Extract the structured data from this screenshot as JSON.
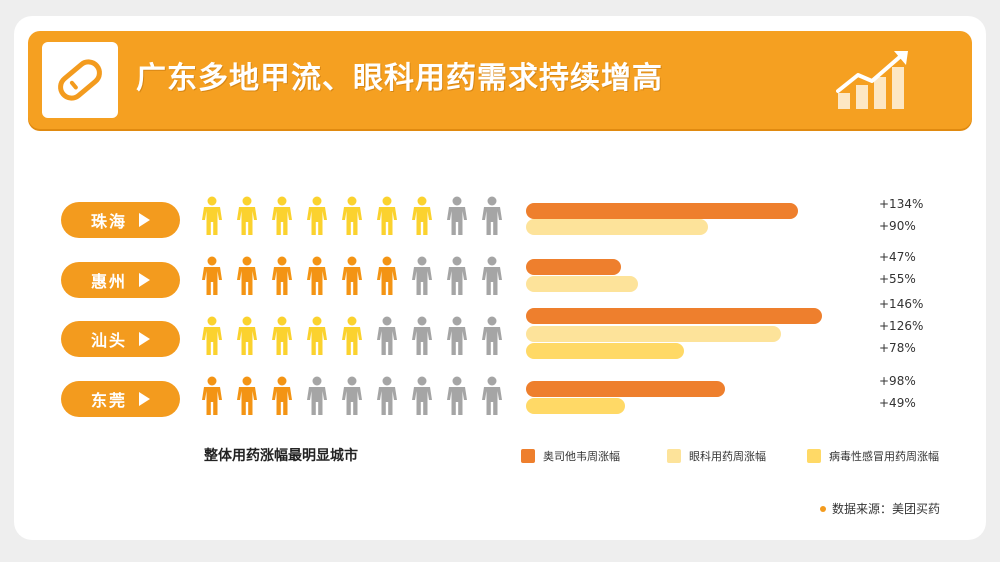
{
  "header": {
    "title": "广东多地甲流、眼科用药需求持续增高",
    "logo_icon": "pill-icon",
    "growth_icon": "growth-chart-icon"
  },
  "chart_data": {
    "type": "bar",
    "orientation": "horizontal",
    "categories": [
      "珠海",
      "惠州",
      "汕头",
      "东莞"
    ],
    "series": [
      {
        "name": "奥司他韦周涨幅",
        "color": "#ee7f2d",
        "values": [
          134,
          47,
          146,
          98
        ]
      },
      {
        "name": "眼科用药周涨幅",
        "color": "#fde39a",
        "values": [
          90,
          55,
          126,
          null
        ]
      },
      {
        "name": "病毒性感冒用药周涨幅",
        "color": "#ffd966",
        "values": [
          null,
          null,
          78,
          49
        ]
      }
    ],
    "value_labels": [
      [
        "+134%",
        "+90%"
      ],
      [
        "+47%",
        "+55%"
      ],
      [
        "+146%",
        "+126%",
        "+78%"
      ],
      [
        "+98%",
        "+49%"
      ]
    ],
    "pictogram": {
      "total": 9,
      "highlighted": [
        7,
        6,
        5,
        3
      ],
      "highlight_colors": [
        "#fbd22e",
        "#f39414",
        "#fbd22e",
        "#f39414"
      ],
      "base_color": "#a5a5a5"
    },
    "legend_position": "bottom"
  },
  "footnote": "整体用药涨幅最明显城市",
  "legend": [
    "奥司他韦周涨幅",
    "眼科用药周涨幅",
    "病毒性感冒用药周涨幅"
  ],
  "source": "数据来源：美团买药"
}
